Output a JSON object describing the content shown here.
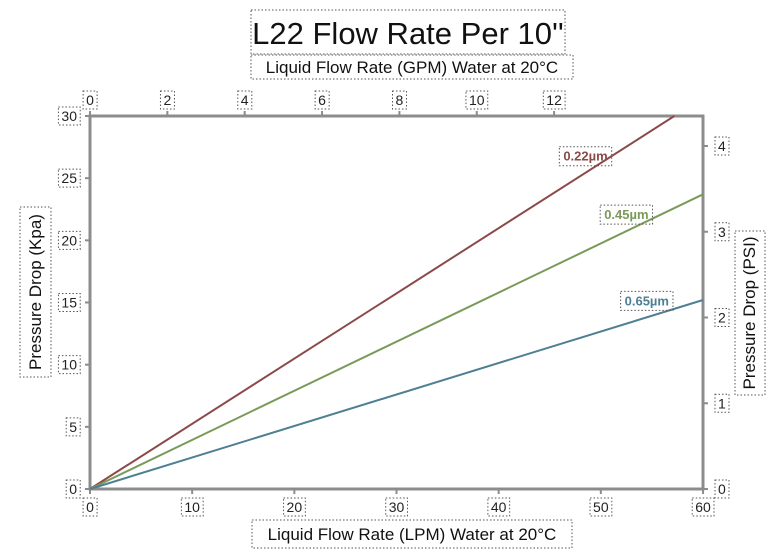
{
  "chart_data": {
    "type": "line",
    "title": "L22 Flow Rate Per 10''",
    "xlabel": "Liquid Flow Rate (LPM) Water at 20°C",
    "ylabel": "Pressure Drop (Kpa)",
    "x2label": "Liquid Flow Rate (GPM) Water at 20°C",
    "y2label": "Pressure Drop (PSI)",
    "xlim": [
      0,
      60
    ],
    "ylim": [
      0,
      30
    ],
    "x2lim": [
      0,
      15.85
    ],
    "y2lim": [
      0,
      4.35
    ],
    "x_ticks": [
      "0",
      "10",
      "20",
      "30",
      "40",
      "50",
      "60"
    ],
    "y_ticks": [
      "0",
      "5",
      "10",
      "15",
      "20",
      "25",
      "30"
    ],
    "x2_ticks": [
      "0",
      "2",
      "4",
      "6",
      "8",
      "10",
      "12"
    ],
    "y2_ticks": [
      "0",
      "1",
      "2",
      "3",
      "4"
    ],
    "grid": false,
    "series": [
      {
        "name": "0.22µm",
        "color": "#8B4A48",
        "x": [
          0,
          57.2
        ],
        "y": [
          0,
          30
        ]
      },
      {
        "name": "0.45µm",
        "color": "#7A9A5A",
        "x": [
          0,
          60
        ],
        "y": [
          0,
          23.7
        ]
      },
      {
        "name": "0.65µm",
        "color": "#4E7F93",
        "x": [
          0,
          60
        ],
        "y": [
          0,
          15.2
        ]
      }
    ]
  }
}
